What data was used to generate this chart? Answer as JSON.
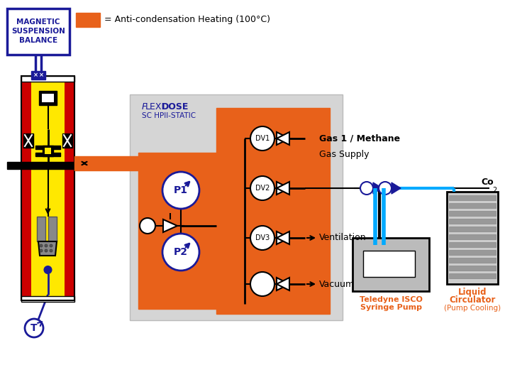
{
  "bg_color": "#ffffff",
  "orange_color": "#E8611A",
  "red_color": "#CC0000",
  "yellow_color": "#FFE800",
  "dark_blue": "#1A1A99",
  "black": "#000000",
  "gray_bg": "#D5D5D5",
  "cyan_color": "#00AAFF",
  "text_orange": "#E8611A",
  "msb_label": [
    "MAGNETIC",
    "SUSPENSION",
    "BALANCE"
  ],
  "flexi_label1": "FLEXI",
  "flexi_label2": "DOSE",
  "flexi_sub": "SC HPII-STATIC",
  "gas1_label": "Gas 1 / Methane",
  "gas_supply_label": "Gas Supply",
  "ventilation_label": "Ventilation",
  "vacuum_label": "Vacuum",
  "co2_label": "Co",
  "pump_label1": "Teledyne ISCO",
  "pump_label2": "Syringe Pump",
  "circ_label1": "Liquid",
  "circ_label2": "Circulator",
  "circ_label3": "(Pump Cooling)",
  "legend_text": "= Anti-condensation Heating (100°C)"
}
